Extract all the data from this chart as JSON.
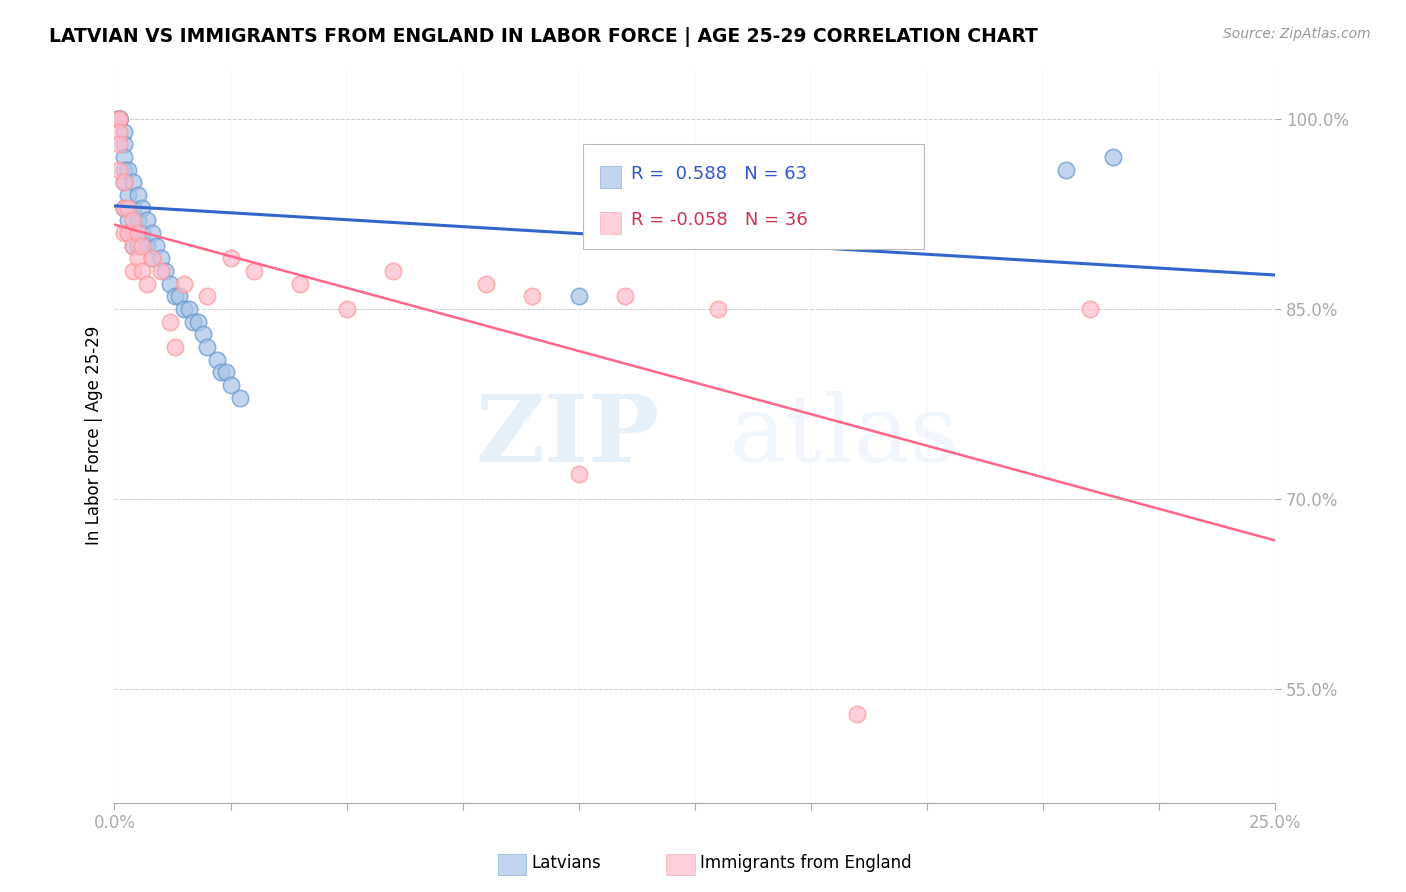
{
  "title": "LATVIAN VS IMMIGRANTS FROM ENGLAND IN LABOR FORCE | AGE 25-29 CORRELATION CHART",
  "source": "Source: ZipAtlas.com",
  "ylabel": "In Labor Force | Age 25-29",
  "xmin": 0.0,
  "xmax": 0.25,
  "ymin": 0.46,
  "ymax": 1.04,
  "xtick_labels": [
    "0.0%",
    "",
    "",
    "",
    "",
    "",
    "",
    "",
    "",
    "",
    "25.0%"
  ],
  "xtick_vals": [
    0.0,
    0.025,
    0.05,
    0.075,
    0.1,
    0.125,
    0.15,
    0.175,
    0.2,
    0.225,
    0.25
  ],
  "ytick_labels": [
    "55.0%",
    "70.0%",
    "85.0%",
    "100.0%"
  ],
  "ytick_vals": [
    0.55,
    0.7,
    0.85,
    1.0
  ],
  "grid_color": "#cccccc",
  "blue_color": "#6699cc",
  "pink_color": "#ff9999",
  "blue_line_color": "#3366cc",
  "pink_line_color": "#ff6688",
  "legend_R_blue": "0.588",
  "legend_N_blue": "63",
  "legend_R_pink": "-0.058",
  "legend_N_pink": "36",
  "legend_label_blue": "Latvians",
  "legend_label_pink": "Immigrants from England",
  "watermark_zip": "ZIP",
  "watermark_atlas": "atlas",
  "latvians_x": [
    0.001,
    0.001,
    0.001,
    0.001,
    0.001,
    0.001,
    0.001,
    0.001,
    0.001,
    0.001,
    0.001,
    0.001,
    0.001,
    0.001,
    0.001,
    0.001,
    0.001,
    0.001,
    0.001,
    0.001,
    0.002,
    0.002,
    0.002,
    0.002,
    0.002,
    0.002,
    0.003,
    0.003,
    0.003,
    0.003,
    0.004,
    0.004,
    0.004,
    0.004,
    0.005,
    0.005,
    0.005,
    0.006,
    0.006,
    0.007,
    0.007,
    0.008,
    0.008,
    0.009,
    0.01,
    0.011,
    0.012,
    0.013,
    0.014,
    0.015,
    0.016,
    0.017,
    0.018,
    0.019,
    0.02,
    0.022,
    0.023,
    0.024,
    0.025,
    0.027,
    0.1,
    0.205,
    0.215
  ],
  "latvians_y": [
    1.0,
    1.0,
    1.0,
    1.0,
    1.0,
    1.0,
    1.0,
    1.0,
    1.0,
    1.0,
    1.0,
    1.0,
    1.0,
    1.0,
    1.0,
    1.0,
    1.0,
    1.0,
    1.0,
    1.0,
    0.99,
    0.98,
    0.97,
    0.96,
    0.95,
    0.93,
    0.96,
    0.94,
    0.92,
    0.91,
    0.95,
    0.93,
    0.91,
    0.9,
    0.94,
    0.92,
    0.9,
    0.93,
    0.91,
    0.92,
    0.9,
    0.91,
    0.89,
    0.9,
    0.89,
    0.88,
    0.87,
    0.86,
    0.86,
    0.85,
    0.85,
    0.84,
    0.84,
    0.83,
    0.82,
    0.81,
    0.8,
    0.8,
    0.79,
    0.78,
    0.86,
    0.96,
    0.97
  ],
  "england_x": [
    0.001,
    0.001,
    0.001,
    0.001,
    0.001,
    0.002,
    0.002,
    0.002,
    0.003,
    0.003,
    0.004,
    0.004,
    0.004,
    0.005,
    0.005,
    0.006,
    0.006,
    0.007,
    0.008,
    0.01,
    0.012,
    0.013,
    0.015,
    0.02,
    0.025,
    0.03,
    0.04,
    0.05,
    0.06,
    0.08,
    0.09,
    0.1,
    0.11,
    0.13,
    0.16,
    0.21
  ],
  "england_y": [
    1.0,
    1.0,
    0.99,
    0.98,
    0.96,
    0.95,
    0.93,
    0.91,
    0.93,
    0.91,
    0.92,
    0.9,
    0.88,
    0.91,
    0.89,
    0.9,
    0.88,
    0.87,
    0.89,
    0.88,
    0.84,
    0.82,
    0.87,
    0.86,
    0.89,
    0.88,
    0.87,
    0.85,
    0.88,
    0.87,
    0.86,
    0.72,
    0.86,
    0.85,
    0.53,
    0.85
  ]
}
